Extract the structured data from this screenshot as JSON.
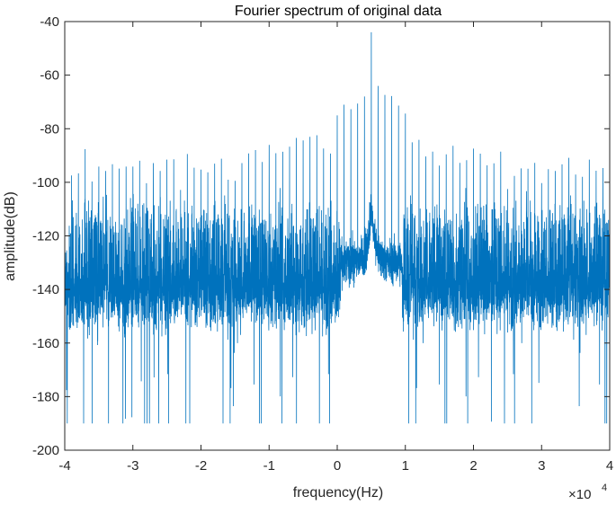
{
  "chart_data": {
    "type": "line",
    "title": "Fourier spectrum of original data",
    "xlabel": "frequency(Hz)",
    "ylabel": "amplitude(dB)",
    "x_exponent_label": "×10",
    "x_exponent_power": "4",
    "xlim": [
      -4,
      4
    ],
    "ylim": [
      -200,
      -40
    ],
    "x_ticks": [
      -4,
      -3,
      -2,
      -1,
      0,
      1,
      2,
      3,
      4
    ],
    "y_ticks": [
      -40,
      -60,
      -80,
      -100,
      -120,
      -140,
      -160,
      -180,
      -200
    ],
    "x_tick_labels": [
      "-4",
      "-3",
      "-2",
      "-1",
      "0",
      "1",
      "2",
      "3",
      "4"
    ],
    "y_tick_labels": [
      "-40",
      "-60",
      "-80",
      "-100",
      "-120",
      "-140",
      "-160",
      "-180",
      "-200"
    ],
    "grid": false,
    "series": [
      {
        "color": "#0072BD",
        "noise_floor_db": -140,
        "noise_band_db": [
          -152,
          -128
        ],
        "dip_min_db": -190,
        "center_peak": {
          "x": 0.5,
          "y": -44
        },
        "harmonic_spacing": 0.1,
        "harmonic_peaks_db": {
          "near_center": -65,
          "mid": -85,
          "edges": -95
        }
      }
    ]
  }
}
